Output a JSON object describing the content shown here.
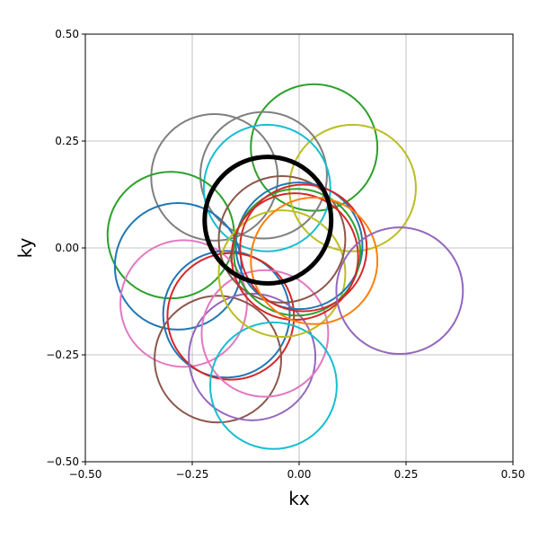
{
  "chart_data": {
    "type": "scatter",
    "title": "",
    "xlabel": "kx",
    "ylabel": "ky",
    "xlim": [
      -0.5,
      0.5
    ],
    "ylim": [
      -0.5,
      0.5
    ],
    "grid": true,
    "xticks": [
      -0.5,
      -0.25,
      0.0,
      0.25,
      0.5
    ],
    "yticks": [
      -0.5,
      -0.25,
      0.0,
      0.25,
      0.5
    ],
    "xtick_labels": [
      "−0.50",
      "−0.25",
      "0.00",
      "0.25",
      "0.50"
    ],
    "ytick_labels": [
      "−0.50",
      "−0.25",
      "0.00",
      "0.25",
      "0.50"
    ],
    "circles": [
      {
        "cx": 0.035,
        "cy": 0.235,
        "r": 0.148,
        "color": "#2ca02c"
      },
      {
        "cx": 0.125,
        "cy": 0.14,
        "r": 0.148,
        "color": "#bcbd22"
      },
      {
        "cx": -0.198,
        "cy": 0.165,
        "r": 0.148,
        "color": "#7f7f7f"
      },
      {
        "cx": -0.083,
        "cy": 0.17,
        "r": 0.148,
        "color": "#7f7f7f"
      },
      {
        "cx": -0.075,
        "cy": 0.14,
        "r": 0.148,
        "color": "#17becf"
      },
      {
        "cx": -0.3,
        "cy": 0.03,
        "r": 0.148,
        "color": "#2ca02c"
      },
      {
        "cx": -0.283,
        "cy": -0.043,
        "r": 0.148,
        "color": "#1f77b4"
      },
      {
        "cx": -0.27,
        "cy": -0.13,
        "r": 0.148,
        "color": "#e377c2"
      },
      {
        "cx": -0.17,
        "cy": -0.155,
        "r": 0.148,
        "color": "#1f77b4"
      },
      {
        "cx": -0.16,
        "cy": -0.16,
        "r": 0.148,
        "color": "#d62728"
      },
      {
        "cx": -0.19,
        "cy": -0.26,
        "r": 0.148,
        "color": "#8c564b"
      },
      {
        "cx": -0.11,
        "cy": -0.255,
        "r": 0.148,
        "color": "#9467bd"
      },
      {
        "cx": -0.08,
        "cy": -0.2,
        "r": 0.148,
        "color": "#e377c2"
      },
      {
        "cx": -0.06,
        "cy": -0.322,
        "r": 0.148,
        "color": "#17becf"
      },
      {
        "cx": -0.04,
        "cy": -0.06,
        "r": 0.148,
        "color": "#bcbd22"
      },
      {
        "cx": -0.04,
        "cy": 0.02,
        "r": 0.148,
        "color": "#8c564b"
      },
      {
        "cx": 0.0,
        "cy": 0.005,
        "r": 0.148,
        "color": "#1f77b4"
      },
      {
        "cx": -0.005,
        "cy": -0.01,
        "r": 0.148,
        "color": "#2ca02c"
      },
      {
        "cx": -0.01,
        "cy": -0.02,
        "r": 0.148,
        "color": "#d62728"
      },
      {
        "cx": 0.01,
        "cy": 0.0,
        "r": 0.148,
        "color": "#d62728"
      },
      {
        "cx": 0.035,
        "cy": -0.03,
        "r": 0.148,
        "color": "#ff7f0e"
      },
      {
        "cx": 0.235,
        "cy": -0.1,
        "r": 0.148,
        "color": "#9467bd"
      },
      {
        "cx": -0.073,
        "cy": 0.065,
        "r": 0.148,
        "color": "#000000",
        "bold": true
      }
    ]
  }
}
